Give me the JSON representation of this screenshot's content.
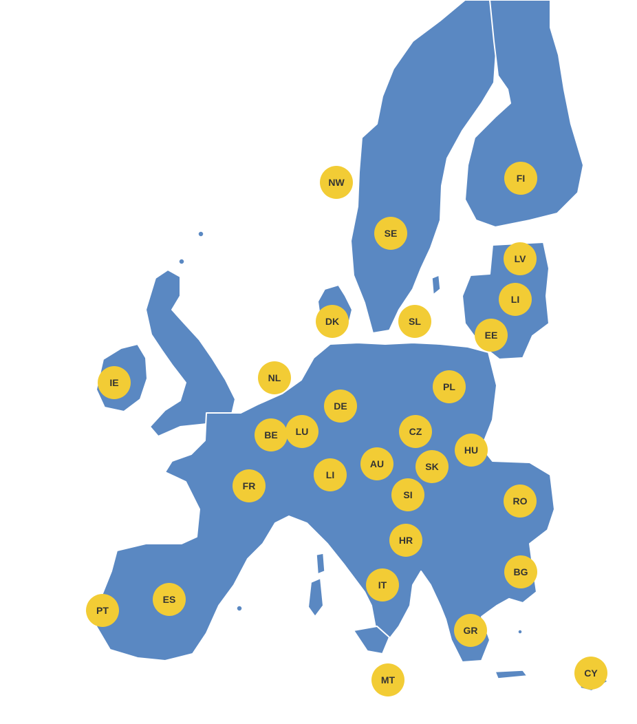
{
  "map": {
    "colors": {
      "land": "#5a88c2",
      "border": "#ffffff",
      "marker": "#f2cc35",
      "marker_text": "#333333"
    },
    "markers": [
      {
        "code": "NW"
      },
      {
        "code": "FI"
      },
      {
        "code": "SE"
      },
      {
        "code": "LV"
      },
      {
        "code": "LI"
      },
      {
        "code": "DK"
      },
      {
        "code": "SL"
      },
      {
        "code": "EE"
      },
      {
        "code": "IE"
      },
      {
        "code": "NL"
      },
      {
        "code": "PL"
      },
      {
        "code": "DE"
      },
      {
        "code": "BE"
      },
      {
        "code": "LU"
      },
      {
        "code": "CZ"
      },
      {
        "code": "HU"
      },
      {
        "code": "AU"
      },
      {
        "code": "SK"
      },
      {
        "code": "LI"
      },
      {
        "code": "FR"
      },
      {
        "code": "SI"
      },
      {
        "code": "RO"
      },
      {
        "code": "HR"
      },
      {
        "code": "BG"
      },
      {
        "code": "IT"
      },
      {
        "code": "ES"
      },
      {
        "code": "PT"
      },
      {
        "code": "GR"
      },
      {
        "code": "MT"
      },
      {
        "code": "CY"
      }
    ]
  }
}
